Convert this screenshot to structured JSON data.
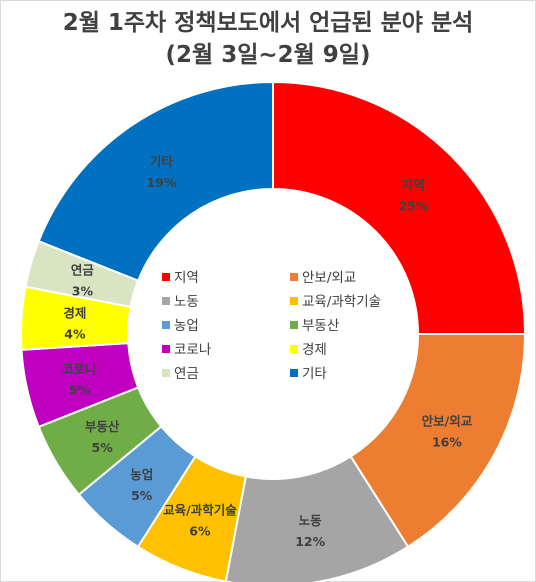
{
  "chart_data": {
    "type": "pie",
    "variant": "donut",
    "title": "2월 1주차 정책보도에서 언급된 분야 분석",
    "subtitle": "(2월 3일~2월 9일)",
    "legend_placement": "center",
    "categories": [
      "지역",
      "안보/외교",
      "노동",
      "교육/과학기술",
      "농업",
      "부동산",
      "코로나",
      "경제",
      "연금",
      "기타"
    ],
    "values": [
      25,
      16,
      12,
      6,
      5,
      5,
      5,
      4,
      3,
      19
    ],
    "value_labels": [
      "25%",
      "16%",
      "12%",
      "6%",
      "5%",
      "5%",
      "5%",
      "4%",
      "3%",
      "19%"
    ],
    "colors": [
      "#ff0000",
      "#ed7d31",
      "#a5a5a5",
      "#ffc000",
      "#5b9bd5",
      "#70ad47",
      "#c000c0",
      "#ffff00",
      "#d9e4c2",
      "#0070c0"
    ]
  }
}
